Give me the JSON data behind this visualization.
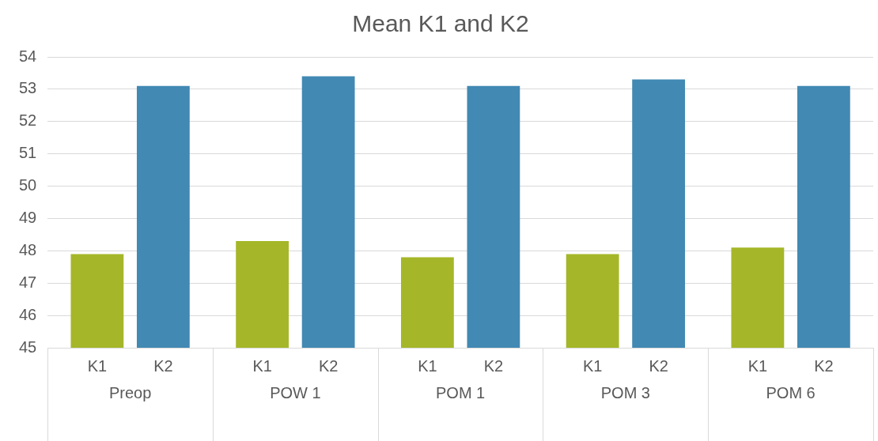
{
  "chart_data": {
    "type": "bar",
    "title": "Mean K1 and K2",
    "categories": [
      "Preop",
      "POW 1",
      "POM 1",
      "POM 3",
      "POM 6"
    ],
    "series": [
      {
        "name": "K1",
        "color": "#a5b728",
        "values": [
          47.9,
          48.3,
          47.8,
          47.9,
          48.1
        ]
      },
      {
        "name": "K2",
        "color": "#4289b3",
        "values": [
          53.1,
          53.4,
          53.1,
          53.3,
          53.1
        ]
      }
    ],
    "ylim": [
      45,
      54
    ],
    "yticks": [
      45,
      46,
      47,
      48,
      49,
      50,
      51,
      52,
      53,
      54
    ],
    "grid": "y",
    "legend": false
  }
}
